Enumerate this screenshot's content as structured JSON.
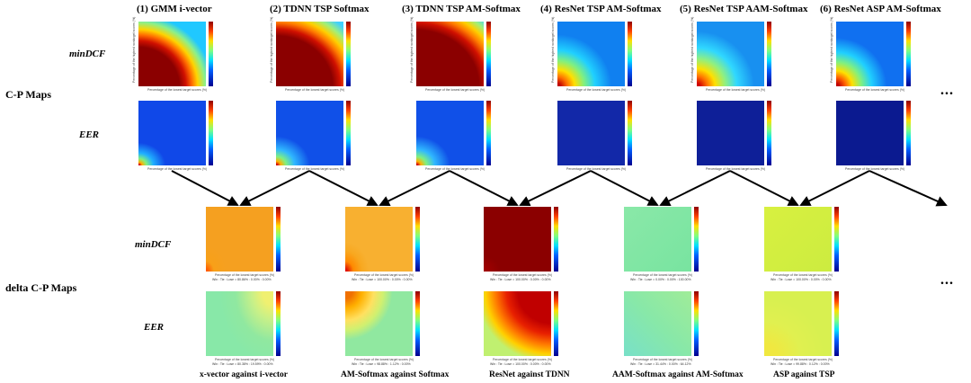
{
  "column_titles": [
    "(1) GMM i-vector",
    "(2) TDNN TSP Softmax",
    "(3) TDNN TSP AM-Softmax",
    "(4) ResNet TSP AM-Softmax",
    "(5) ResNet TSP AAM-Softmax",
    "(6) ResNet ASP AM-Softmax"
  ],
  "row_labels": {
    "top_mindcf": "minDCF",
    "top_eer": "EER",
    "bottom_mindcf": "minDCF",
    "bottom_eer": "EER"
  },
  "section_labels": {
    "cp_maps": "C-P Maps",
    "delta_cp_maps": "delta C-P Maps"
  },
  "ellipsis": "...",
  "bottom_titles": [
    "x-vector against i-vector",
    "AM-Softmax against Softmax",
    "ResNet against TDNN",
    "AAM-Softmax against AM-Softmax",
    "ASP against TSP"
  ],
  "axis_text": {
    "xlabel": "Percentage of the lowest target scores (%)",
    "ylabel": "Percentage of the highest nontarget scores (%)"
  },
  "delta_captions": [
    "Win : Tie : Lose = 80.86% : 0.00% : 0.00%",
    "Win : Tie : Lose = 100.00% : 0.00% : 0.00%",
    "Win : Tie : Lose = 100.00% : 0.00% : 0.00%",
    "Win : Tie : Lose = 0.00% : 0.00% : 100.00%",
    "Win : Tie : Lose = 100.00% : 0.00% : 0.00%",
    "Win : Tie : Lose = 80.38% : 19.59% : 0.00%",
    "Win : Tie : Lose = 98.88% : 1.12% : 0.00%",
    "Win : Tie : Lose = 100.00% : 0.00% : 0.00%",
    "Win : Tie : Lose = 31.44% : 0.00% : 64.12%",
    "Win : Tie : Lose = 99.88% : 0.12% : 0.00%"
  ],
  "colors": {
    "dark_red": "#8b0000",
    "blue": "#1040e0",
    "dark_blue": "#0a1a90",
    "orange": "#f5a020",
    "yellow_green": "#d2f040",
    "light_green": "#7de8a0",
    "red": "#c81010"
  }
}
